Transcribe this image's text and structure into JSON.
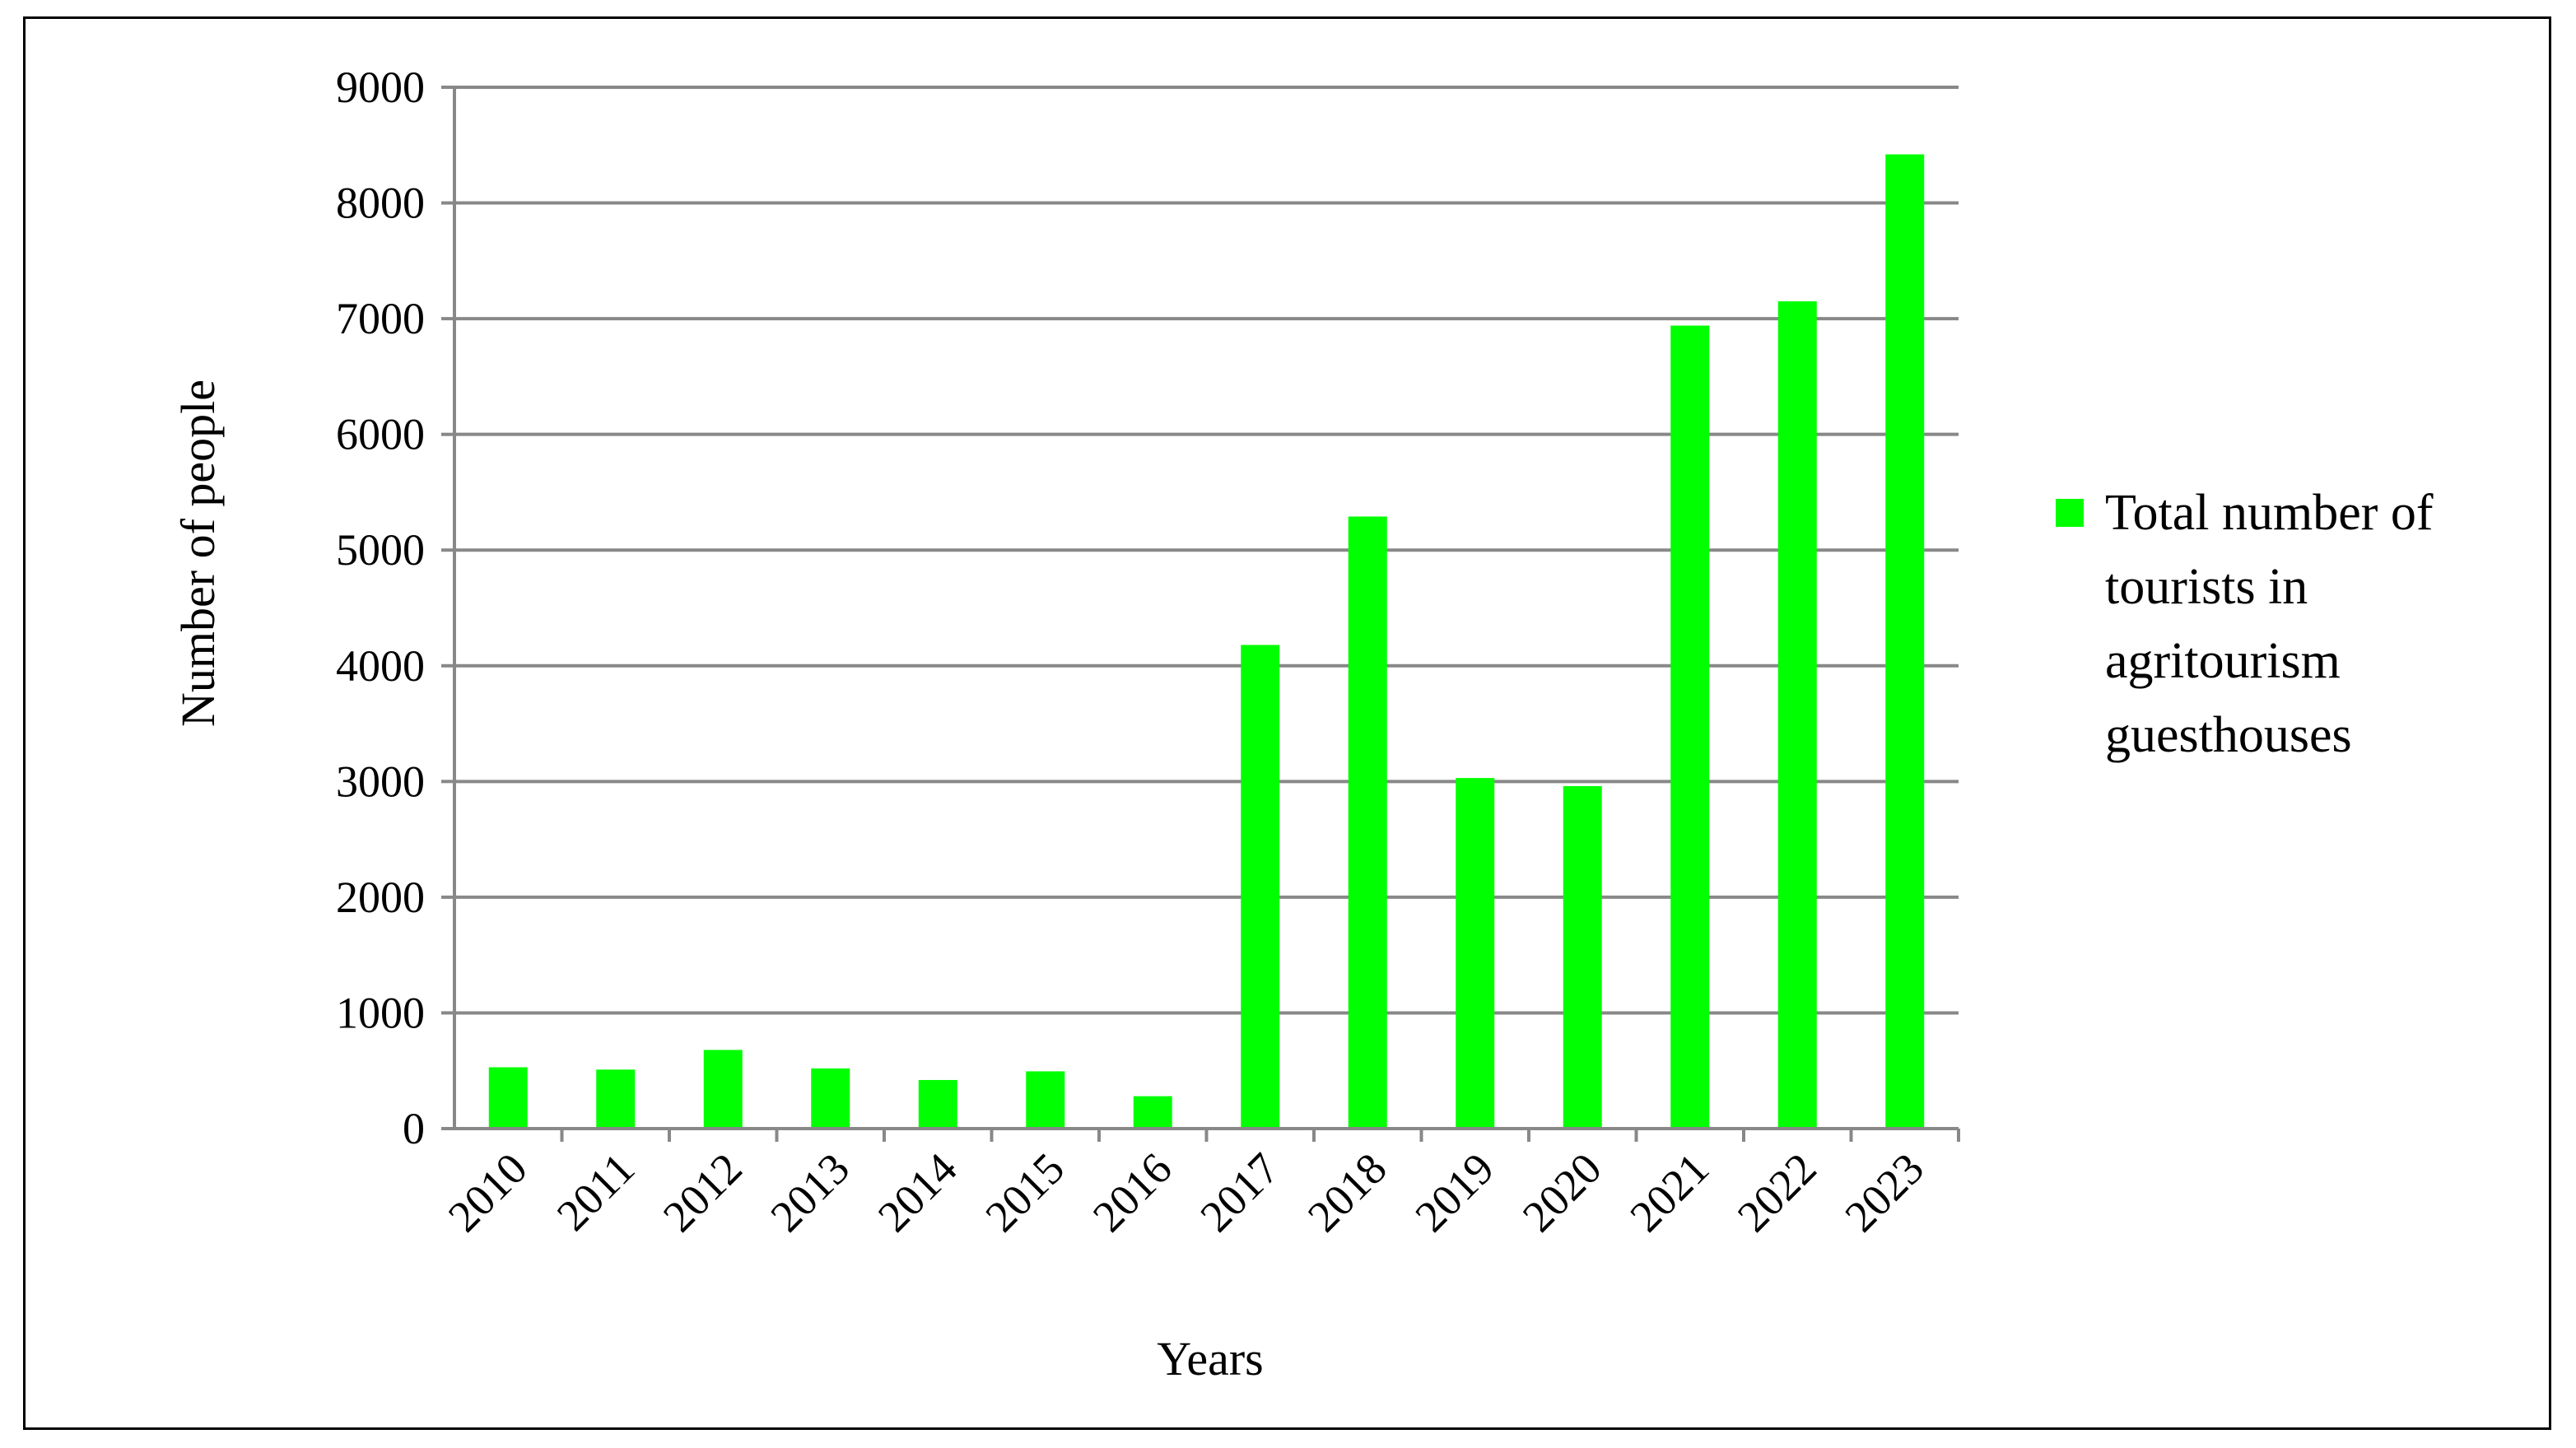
{
  "chart_data": {
    "type": "bar",
    "title": "",
    "xlabel": "Years",
    "ylabel": "Number of people",
    "categories": [
      "2010",
      "2011",
      "2012",
      "2013",
      "2014",
      "2015",
      "2016",
      "2017",
      "2018",
      "2019",
      "2020",
      "2021",
      "2022",
      "2023"
    ],
    "series": [
      {
        "name": "Total number of tourists in agritourism guesthouses",
        "color": "#00ff00",
        "values": [
          530,
          510,
          680,
          520,
          420,
          495,
          280,
          4180,
          5290,
          3030,
          2960,
          6940,
          7150,
          8420
        ]
      }
    ],
    "ylim": [
      0,
      9000
    ],
    "yticks": [
      "0",
      "1000",
      "2000",
      "3000",
      "4000",
      "5000",
      "6000",
      "7000",
      "8000",
      "9000"
    ],
    "grid": true,
    "legend_position": "right",
    "legend_lines": [
      "Total number of",
      "tourists in",
      "agritourism",
      "guesthouses"
    ]
  }
}
